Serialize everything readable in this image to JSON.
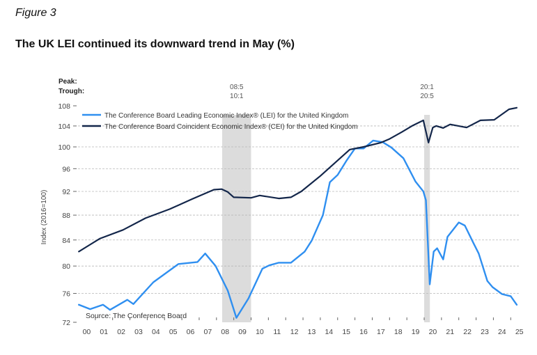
{
  "figure_label": "Figure 3",
  "figure_title": "The UK LEI continued its downward trend in May (%)",
  "chart_data": {
    "type": "line",
    "title": "The UK LEI continued its downward trend in May (%)",
    "xlabel": "",
    "ylabel": "Index (2016=100)",
    "y_scale": "log",
    "ylim": [
      72,
      108
    ],
    "xlim": [
      2000,
      2025.5
    ],
    "y_ticks": [
      72,
      76,
      80,
      84,
      88,
      92,
      96,
      100,
      104,
      108
    ],
    "y_tick_labels": [
      "72",
      "76",
      "80",
      "84",
      "88",
      "92",
      "96",
      "100",
      "104",
      "108"
    ],
    "x_tick_labels": [
      "00",
      "01",
      "02",
      "03",
      "04",
      "05",
      "06",
      "07",
      "08",
      "09",
      "10",
      "11",
      "12",
      "13",
      "14",
      "15",
      "16",
      "17",
      "18",
      "19",
      "20",
      "21",
      "22",
      "23",
      "24",
      "25"
    ],
    "grid": "horizontal-dashed",
    "legend_placement": "top-left",
    "peak_label": "Peak:",
    "trough_label": "Trough:",
    "recessions": [
      {
        "peak": "08:5",
        "trough": "10:1",
        "start": 2008.33,
        "end": 2010.0
      },
      {
        "peak": "20:1",
        "trough": "20:5",
        "start": 2020.0,
        "end": 2020.33
      }
    ],
    "source": "Source: The Conference Board",
    "series": [
      {
        "name": "The Conference Board Leading Economic Index® (LEI) for the United Kingdom",
        "color": "#2f8ff0",
        "x": [
          2000.05,
          2000.7,
          2001.45,
          2001.85,
          2002.85,
          2003.2,
          2004.35,
          2005.8,
          2006.9,
          2007.35,
          2007.95,
          2008.65,
          2009.15,
          2009.85,
          2010.65,
          2011.05,
          2011.6,
          2012.3,
          2013.1,
          2013.5,
          2014.15,
          2014.55,
          2015.0,
          2015.5,
          2016.0,
          2016.5,
          2017.05,
          2017.6,
          2018.1,
          2018.8,
          2019.5,
          2019.95,
          2020.1,
          2020.32,
          2020.55,
          2020.75,
          2021.1,
          2021.35,
          2022.0,
          2022.35,
          2022.85,
          2023.15,
          2023.65,
          2023.95,
          2024.5,
          2025.0,
          2025.35
        ],
        "values": [
          74.4,
          73.8,
          74.4,
          73.7,
          75.1,
          74.5,
          77.6,
          80.3,
          80.6,
          81.9,
          80.0,
          76.4,
          72.6,
          75.3,
          79.6,
          80.1,
          80.5,
          80.5,
          82.2,
          83.9,
          88.0,
          93.6,
          94.9,
          97.4,
          99.7,
          99.7,
          101.2,
          100.9,
          99.9,
          97.9,
          93.7,
          92.0,
          90.5,
          77.3,
          82.2,
          82.7,
          81.0,
          84.5,
          86.8,
          86.3,
          83.5,
          81.9,
          77.8,
          76.9,
          75.9,
          75.6,
          74.4
        ]
      },
      {
        "name": "The Conference Board Coincident Economic Index® (CEI) for the United Kingdom",
        "color": "#13264a",
        "x": [
          2000.05,
          2001.25,
          2002.6,
          2003.9,
          2005.3,
          2006.6,
          2007.85,
          2008.3,
          2008.65,
          2009.0,
          2010.0,
          2010.5,
          2011.6,
          2012.3,
          2012.9,
          2014.0,
          2015.7,
          2016.5,
          2017.5,
          2018.0,
          2018.7,
          2019.35,
          2019.95,
          2020.25,
          2020.5,
          2020.7,
          2021.1,
          2021.5,
          2022.45,
          2023.25,
          2024.05,
          2024.9,
          2025.35
        ],
        "values": [
          82.2,
          84.2,
          85.6,
          87.5,
          89.0,
          90.7,
          92.3,
          92.4,
          91.9,
          91.0,
          90.9,
          91.3,
          90.8,
          91.0,
          92.0,
          94.7,
          99.5,
          100.0,
          100.8,
          101.5,
          102.8,
          104.1,
          105.1,
          100.8,
          103.7,
          104.0,
          103.6,
          104.3,
          103.7,
          105.1,
          105.2,
          107.3,
          107.6
        ]
      }
    ]
  }
}
